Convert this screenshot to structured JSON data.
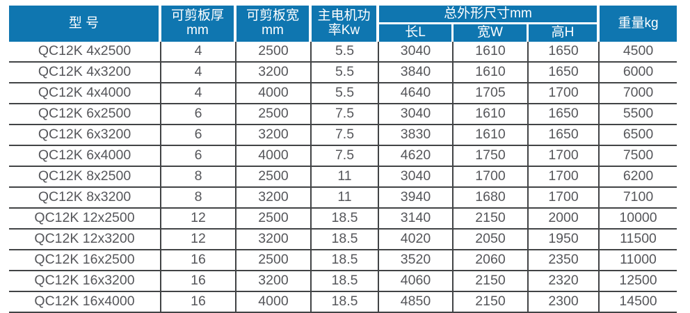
{
  "colors": {
    "header_bg": "#0f76b0",
    "border": "#414345",
    "body_text": "#55565a",
    "header_text": "#ffffff",
    "page_bg": "#ffffff"
  },
  "table": {
    "columns": [
      {
        "key": "model",
        "label": "型 号"
      },
      {
        "key": "thickness",
        "label": "可剪板厚\nmm"
      },
      {
        "key": "width",
        "label": "可剪板宽\nmm"
      },
      {
        "key": "power",
        "label": "主电机功\n率Kw"
      },
      {
        "key": "dimensions",
        "label": "总外形尺寸mm",
        "children": [
          {
            "key": "length",
            "label": "长L"
          },
          {
            "key": "width",
            "label": "宽W"
          },
          {
            "key": "height",
            "label": "高H"
          }
        ]
      },
      {
        "key": "weight",
        "label": "重量kg"
      }
    ],
    "rows": [
      [
        "QC12K 4x2500",
        "4",
        "2500",
        "5.5",
        "3040",
        "1610",
        "1650",
        "4500"
      ],
      [
        "QC12K 4x3200",
        "4",
        "3200",
        "5.5",
        "3840",
        "1610",
        "1650",
        "6000"
      ],
      [
        "QC12K 4x4000",
        "4",
        "4000",
        "5.5",
        "4640",
        "1705",
        "1700",
        "7000"
      ],
      [
        "QC12K 6x2500",
        "6",
        "2500",
        "7.5",
        "3040",
        "1610",
        "1650",
        "5500"
      ],
      [
        "QC12K 6x3200",
        "6",
        "3200",
        "7.5",
        "3830",
        "1610",
        "1650",
        "6500"
      ],
      [
        "QC12K 6x4000",
        "6",
        "4000",
        "7.5",
        "4620",
        "1750",
        "1700",
        "7500"
      ],
      [
        "QC12K 8x2500",
        "8",
        "2500",
        "11",
        "3040",
        "1700",
        "1700",
        "6200"
      ],
      [
        "QC12K 8x3200",
        "8",
        "3200",
        "11",
        "3940",
        "1680",
        "1700",
        "7100"
      ],
      [
        "QC12K 12x2500",
        "12",
        "2500",
        "18.5",
        "3140",
        "2150",
        "2000",
        "10000"
      ],
      [
        "QC12K 12x3200",
        "12",
        "3200",
        "18.5",
        "4020",
        "2050",
        "1950",
        "11500"
      ],
      [
        "QC12K 16x2500",
        "16",
        "2500",
        "18.5",
        "3520",
        "2060",
        "2350",
        "11000"
      ],
      [
        "QC12K 16x3200",
        "16",
        "3200",
        "18.5",
        "4060",
        "2150",
        "2320",
        "12500"
      ],
      [
        "QC12K 16x4000",
        "16",
        "4000",
        "18.5",
        "4850",
        "2150",
        "2300",
        "14500"
      ]
    ]
  }
}
